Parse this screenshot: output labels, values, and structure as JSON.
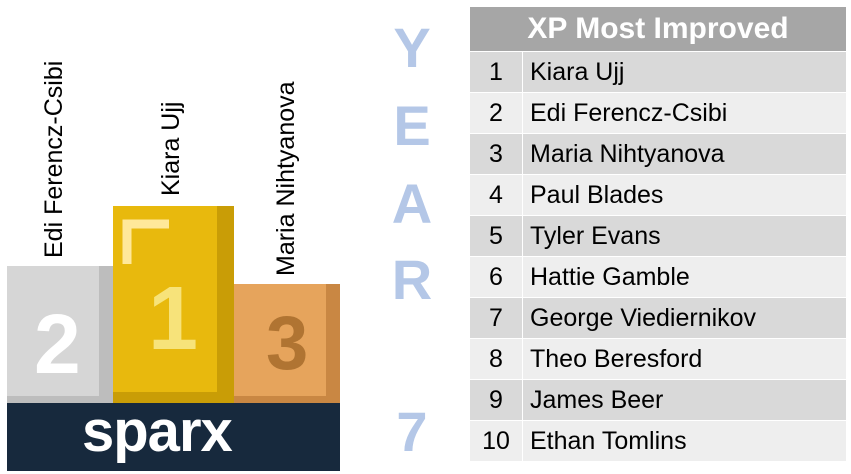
{
  "podium": {
    "first": {
      "name": "Kiara Ujj",
      "numeral": "1"
    },
    "second": {
      "name": "Edi Ferencz-Csibi",
      "numeral": "2"
    },
    "third": {
      "name": "Maria Nihtyanova",
      "numeral": "3"
    },
    "brand": "sparx",
    "colors": {
      "gold": "#e8b80c",
      "silver": "#d4d4d4",
      "bronze": "#e0a25a",
      "navy": "#17293d"
    }
  },
  "year_label": {
    "letters": [
      "Y",
      "E",
      "A",
      "R",
      "7"
    ],
    "color": "#b4c7e7"
  },
  "table": {
    "title": "XP Most Improved",
    "rows": [
      {
        "rank": "1",
        "name": "Kiara Ujj"
      },
      {
        "rank": "2",
        "name": "Edi Ferencz-Csibi"
      },
      {
        "rank": "3",
        "name": "Maria Nihtyanova"
      },
      {
        "rank": "4",
        "name": "Paul Blades"
      },
      {
        "rank": "5",
        "name": "Tyler Evans"
      },
      {
        "rank": "6",
        "name": "Hattie Gamble"
      },
      {
        "rank": "7",
        "name": "George Viediernikov"
      },
      {
        "rank": "8",
        "name": "Theo Beresford"
      },
      {
        "rank": "9",
        "name": "James Beer"
      },
      {
        "rank": "10",
        "name": "Ethan Tomlins"
      }
    ]
  }
}
